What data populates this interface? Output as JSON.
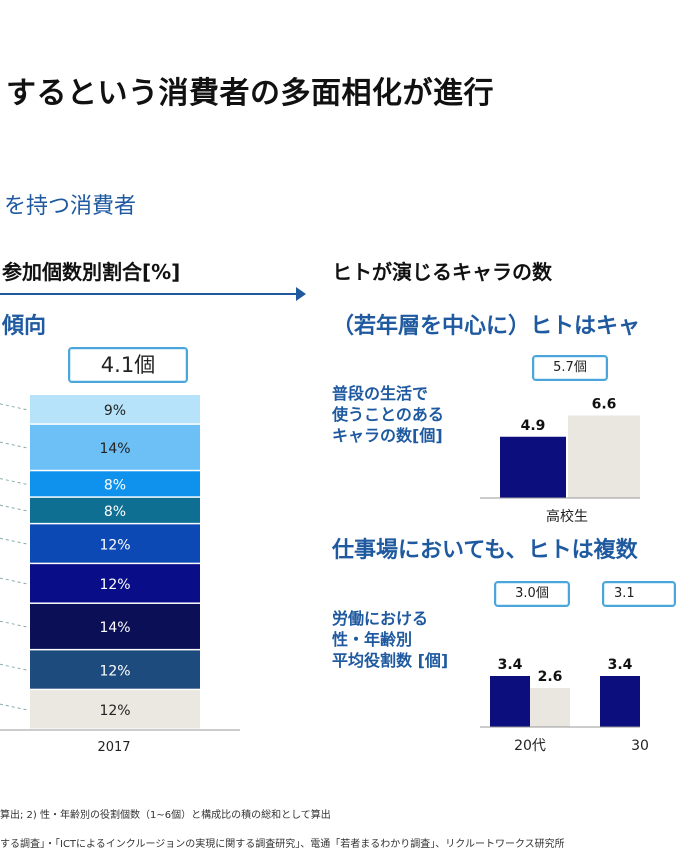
{
  "title": "するという消費者の多面相化が進行",
  "subtitle": "を持つ消費者",
  "left": {
    "header": "参加個数別割合[%]",
    "accent": "傾向",
    "callout": "4.1個"
  },
  "right": {
    "header": "ヒトが演じるキャラの数",
    "accent1": "（若年層を中心に）ヒトはキャ",
    "accent2": "仕事場においても、ヒトは複数",
    "chart1": {
      "label_lines": [
        "普段の生活で",
        "使うことのある",
        "キャラの数[個]"
      ],
      "callout": "5.7個"
    },
    "chart2": {
      "label_lines": [
        "労働における",
        "性・年齢別",
        "平均役割数 [個]"
      ],
      "callouts": [
        "3.0個",
        "3.1"
      ]
    }
  },
  "footnotes": [
    "算出; 2) 性・年齢別の役割個数（1~6個）と構成比の積の総和として算出",
    "する調査」・「ICTによるインクルージョンの実現に関する調査研究」、電通「若者まるわかり調査」、リクルートワークス研究所"
  ],
  "chart_data": [
    {
      "type": "bar",
      "stacked": true,
      "categories": [
        "2017"
      ],
      "segments": [
        {
          "value": 12,
          "label": "12%",
          "color": "#eae8e0"
        },
        {
          "value": 12,
          "label": "12%",
          "color": "#1e4b7e"
        },
        {
          "value": 14,
          "label": "14%",
          "color": "#0a0f56"
        },
        {
          "value": 12,
          "label": "12%",
          "color": "#090d88"
        },
        {
          "value": 12,
          "label": "12%",
          "color": "#0d49b5"
        },
        {
          "value": 8,
          "label": "8%",
          "color": "#0f6f93"
        },
        {
          "value": 8,
          "label": "8%",
          "color": "#0f92ee"
        },
        {
          "value": 14,
          "label": "14%",
          "color": "#6cc0f6"
        },
        {
          "value": 9,
          "label": "9%",
          "color": "#b6e2fa"
        }
      ]
    },
    {
      "type": "bar",
      "categories": [
        "高校生"
      ],
      "series": [
        {
          "values": [
            4.9
          ],
          "labels": [
            "4.9"
          ],
          "color": "#0c0e7e"
        },
        {
          "values": [
            6.6
          ],
          "labels": [
            "6.6"
          ],
          "color": "#e9e7df"
        }
      ]
    },
    {
      "type": "bar",
      "categories": [
        "20代",
        "30"
      ],
      "series": [
        {
          "values": [
            3.4,
            3.4
          ],
          "labels": [
            "3.4",
            "3.4"
          ],
          "color": "#0c0e7e"
        },
        {
          "values": [
            2.6,
            null
          ],
          "labels": [
            "2.6",
            ""
          ],
          "color": "#e9e7df"
        }
      ]
    }
  ]
}
